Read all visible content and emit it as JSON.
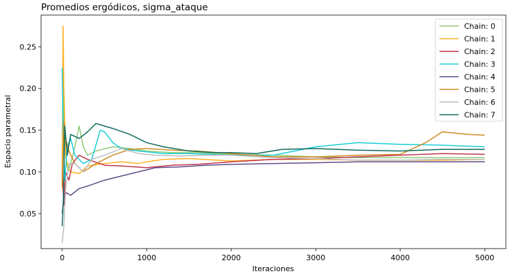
{
  "chart_data": {
    "type": "line",
    "title": "Promedios ergódicos, sigma_ataque",
    "xlabel": "Iteraciones",
    "ylabel": "Espacio parametral",
    "xlim": [
      -250,
      5250
    ],
    "ylim": [
      0.008,
      0.288
    ],
    "x_ticks": [
      0,
      1000,
      2000,
      3000,
      4000,
      5000
    ],
    "x_tick_labels": [
      "0",
      "1000",
      "2000",
      "3000",
      "4000",
      "5000"
    ],
    "y_ticks": [
      0.05,
      0.1,
      0.15,
      0.2,
      0.25
    ],
    "y_tick_labels": [
      "0.05",
      "0.10",
      "0.15",
      "0.20",
      "0.25"
    ],
    "grid": false,
    "legend_position": "top-right",
    "series": [
      {
        "name": "Chain: 0",
        "color": "#90c978",
        "points": [
          [
            0,
            0.09
          ],
          [
            10,
            0.21
          ],
          [
            20,
            0.16
          ],
          [
            40,
            0.12
          ],
          [
            70,
            0.1
          ],
          [
            100,
            0.11
          ],
          [
            150,
            0.13
          ],
          [
            200,
            0.155
          ],
          [
            250,
            0.13
          ],
          [
            300,
            0.12
          ],
          [
            400,
            0.125
          ],
          [
            600,
            0.13
          ],
          [
            800,
            0.128
          ],
          [
            1000,
            0.125
          ],
          [
            1300,
            0.123
          ],
          [
            1600,
            0.123
          ],
          [
            2000,
            0.121
          ],
          [
            2500,
            0.12
          ],
          [
            3000,
            0.118
          ],
          [
            3500,
            0.117
          ],
          [
            4000,
            0.117
          ],
          [
            4500,
            0.117
          ],
          [
            5000,
            0.117
          ]
        ]
      },
      {
        "name": "Chain: 1",
        "color": "#ffb020",
        "points": [
          [
            0,
            0.08
          ],
          [
            10,
            0.275
          ],
          [
            20,
            0.2
          ],
          [
            40,
            0.12
          ],
          [
            70,
            0.105
          ],
          [
            100,
            0.1
          ],
          [
            200,
            0.098
          ],
          [
            300,
            0.107
          ],
          [
            500,
            0.11
          ],
          [
            700,
            0.112
          ],
          [
            900,
            0.11
          ],
          [
            1000,
            0.112
          ],
          [
            1200,
            0.115
          ],
          [
            1500,
            0.116
          ],
          [
            2000,
            0.113
          ],
          [
            2500,
            0.115
          ],
          [
            3000,
            0.115
          ],
          [
            3500,
            0.114
          ],
          [
            4000,
            0.114
          ],
          [
            4500,
            0.114
          ],
          [
            5000,
            0.115
          ]
        ]
      },
      {
        "name": "Chain: 2",
        "color": "#c0344d",
        "points": [
          [
            0,
            0.1
          ],
          [
            20,
            0.06
          ],
          [
            40,
            0.1
          ],
          [
            80,
            0.09
          ],
          [
            120,
            0.11
          ],
          [
            200,
            0.12
          ],
          [
            300,
            0.115
          ],
          [
            500,
            0.108
          ],
          [
            700,
            0.107
          ],
          [
            1000,
            0.105
          ],
          [
            1300,
            0.108
          ],
          [
            1600,
            0.109
          ],
          [
            2000,
            0.112
          ],
          [
            2500,
            0.115
          ],
          [
            3000,
            0.116
          ],
          [
            3500,
            0.118
          ],
          [
            4000,
            0.12
          ],
          [
            4500,
            0.122
          ],
          [
            5000,
            0.121
          ]
        ]
      },
      {
        "name": "Chain: 3",
        "color": "#17cfd8",
        "points": [
          [
            0,
            0.225
          ],
          [
            10,
            0.15
          ],
          [
            30,
            0.09
          ],
          [
            60,
            0.13
          ],
          [
            100,
            0.14
          ],
          [
            150,
            0.12
          ],
          [
            250,
            0.11
          ],
          [
            350,
            0.115
          ],
          [
            450,
            0.15
          ],
          [
            500,
            0.148
          ],
          [
            600,
            0.135
          ],
          [
            700,
            0.128
          ],
          [
            900,
            0.125
          ],
          [
            1200,
            0.122
          ],
          [
            1500,
            0.122
          ],
          [
            2000,
            0.12
          ],
          [
            2500,
            0.12
          ],
          [
            3000,
            0.13
          ],
          [
            3500,
            0.135
          ],
          [
            4000,
            0.133
          ],
          [
            4500,
            0.132
          ],
          [
            5000,
            0.13
          ]
        ]
      },
      {
        "name": "Chain: 4",
        "color": "#5e4a86",
        "points": [
          [
            0,
            0.05
          ],
          [
            20,
            0.07
          ],
          [
            50,
            0.075
          ],
          [
            100,
            0.072
          ],
          [
            200,
            0.08
          ],
          [
            300,
            0.083
          ],
          [
            500,
            0.09
          ],
          [
            700,
            0.095
          ],
          [
            900,
            0.1
          ],
          [
            1100,
            0.105
          ],
          [
            1400,
            0.106
          ],
          [
            1700,
            0.108
          ],
          [
            2000,
            0.109
          ],
          [
            2500,
            0.11
          ],
          [
            3000,
            0.111
          ],
          [
            3500,
            0.112
          ],
          [
            4000,
            0.112
          ],
          [
            4500,
            0.112
          ],
          [
            5000,
            0.112
          ]
        ]
      },
      {
        "name": "Chain: 5",
        "color": "#cd8a22",
        "points": [
          [
            0,
            0.085
          ],
          [
            20,
            0.16
          ],
          [
            40,
            0.14
          ],
          [
            80,
            0.125
          ],
          [
            150,
            0.11
          ],
          [
            250,
            0.1
          ],
          [
            400,
            0.11
          ],
          [
            600,
            0.12
          ],
          [
            800,
            0.127
          ],
          [
            1000,
            0.128
          ],
          [
            1300,
            0.126
          ],
          [
            1600,
            0.125
          ],
          [
            2000,
            0.122
          ],
          [
            2500,
            0.118
          ],
          [
            3000,
            0.118
          ],
          [
            3500,
            0.12
          ],
          [
            4000,
            0.121
          ],
          [
            4300,
            0.135
          ],
          [
            4500,
            0.148
          ],
          [
            4800,
            0.145
          ],
          [
            5000,
            0.144
          ]
        ]
      },
      {
        "name": "Chain: 6",
        "color": "#bcbcbc",
        "points": [
          [
            0,
            0.015
          ],
          [
            20,
            0.035
          ],
          [
            40,
            0.08
          ],
          [
            80,
            0.11
          ],
          [
            150,
            0.11
          ],
          [
            250,
            0.1
          ],
          [
            350,
            0.115
          ],
          [
            500,
            0.12
          ],
          [
            700,
            0.128
          ],
          [
            900,
            0.122
          ],
          [
            1100,
            0.12
          ],
          [
            1400,
            0.119
          ],
          [
            1700,
            0.12
          ],
          [
            2000,
            0.12
          ],
          [
            2500,
            0.117
          ],
          [
            3000,
            0.116
          ],
          [
            3500,
            0.114
          ],
          [
            4000,
            0.114
          ],
          [
            4500,
            0.115
          ],
          [
            5000,
            0.115
          ]
        ]
      },
      {
        "name": "Chain: 7",
        "color": "#0c6b5c",
        "points": [
          [
            0,
            0.035
          ],
          [
            15,
            0.07
          ],
          [
            30,
            0.155
          ],
          [
            60,
            0.12
          ],
          [
            100,
            0.145
          ],
          [
            200,
            0.14
          ],
          [
            300,
            0.148
          ],
          [
            400,
            0.158
          ],
          [
            500,
            0.155
          ],
          [
            600,
            0.152
          ],
          [
            800,
            0.145
          ],
          [
            1000,
            0.135
          ],
          [
            1200,
            0.13
          ],
          [
            1500,
            0.125
          ],
          [
            1800,
            0.123
          ],
          [
            2000,
            0.123
          ],
          [
            2300,
            0.122
          ],
          [
            2600,
            0.127
          ],
          [
            3000,
            0.128
          ],
          [
            3500,
            0.126
          ],
          [
            4000,
            0.125
          ],
          [
            4500,
            0.127
          ],
          [
            5000,
            0.127
          ]
        ]
      }
    ]
  }
}
